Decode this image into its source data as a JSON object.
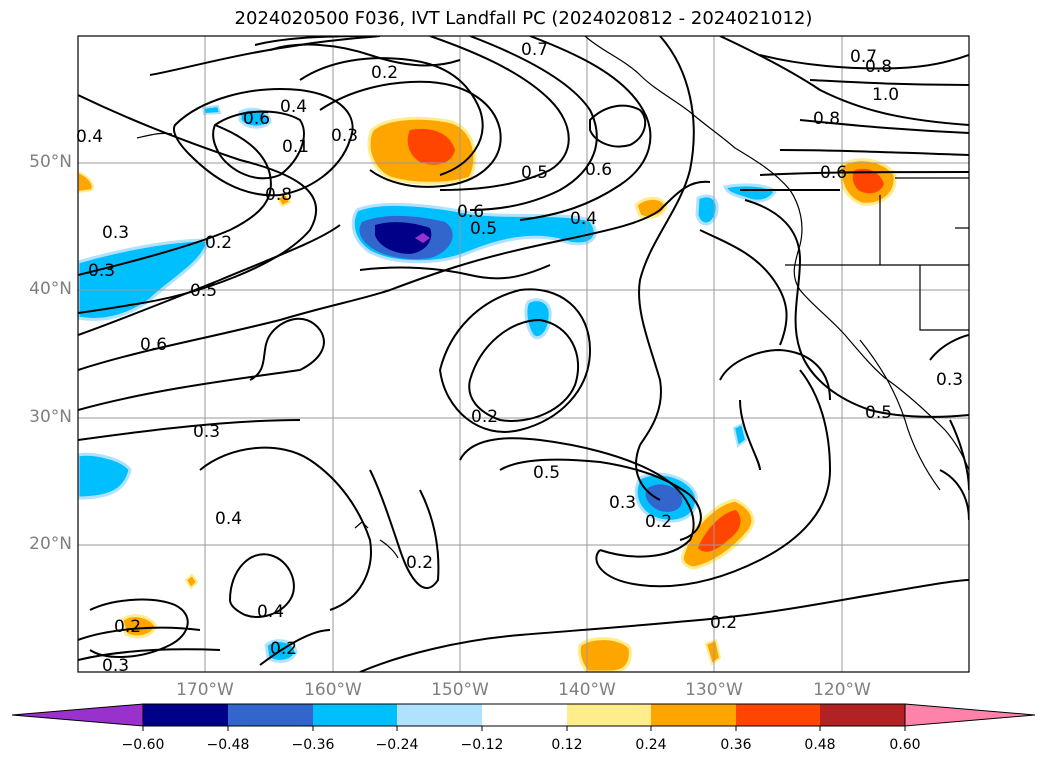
{
  "title": "2024020500 F036, IVT Landfall PC (2024020812 - 2024021012)",
  "map": {
    "projection": "PlateCarree",
    "lon_range": [
      -180,
      -110
    ],
    "lat_range": [
      10,
      60
    ],
    "lat_ticks": [
      "50°N",
      "40°N",
      "30°N",
      "20°N"
    ],
    "lon_ticks": [
      "170°W",
      "160°W",
      "150°W",
      "140°W",
      "130°W",
      "120°W"
    ],
    "gridlines": true,
    "contour_color": "#000000",
    "contour_labels": [
      "0.4",
      "0.6",
      "0.7",
      "0.8",
      "1.0",
      "0.2",
      "0.4",
      "0.6",
      "0.1",
      "0.3",
      "0.8",
      "0.5",
      "0.6",
      "0.6",
      "0.5",
      "0.4",
      "0.8",
      "0.6",
      "0.3",
      "0.2",
      "0.3",
      "0.5",
      "0.6",
      "0.3",
      "0.2",
      "0.5",
      "0.3",
      "0.4",
      "0.2",
      "0.4",
      "0.2",
      "0.2",
      "0.2",
      "0.3",
      "0.2",
      "0.2",
      "0.3",
      "0.5",
      "0.2"
    ]
  },
  "colorbar": {
    "colors": [
      "#9932cc",
      "#000088",
      "#3366cc",
      "#00bfff",
      "#b0e2ff",
      "#ffffff",
      "#ffec8b",
      "#ffa500",
      "#ff4500",
      "#b22222",
      "#ff82ab"
    ],
    "ticks": [
      "−0.60",
      "−0.48",
      "−0.36",
      "−0.24",
      "−0.12",
      "0.12",
      "0.24",
      "0.36",
      "0.48",
      "0.60"
    ],
    "extend": "both"
  }
}
